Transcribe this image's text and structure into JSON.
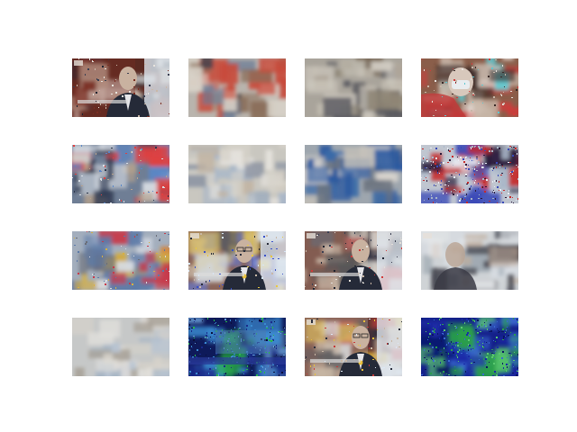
{
  "grid": {
    "rows": 4,
    "columns": 4
  },
  "tiles": [
    {
      "id": 1,
      "kind": "interview-man",
      "base": "#5a2a22",
      "colors": [
        "#7a2e22",
        "#c9b8a8",
        "#1f2430",
        "#e8e4de",
        "#3a3f52"
      ]
    },
    {
      "id": 2,
      "kind": "office-crowd",
      "base": "#b9b4ad",
      "colors": [
        "#3b3f4a",
        "#d8d2c8",
        "#8a6e5a",
        "#c84a3a",
        "#6e7d96"
      ]
    },
    {
      "id": 3,
      "kind": "blurred-room",
      "base": "#a9a49b",
      "colors": [
        "#7a6a5a",
        "#c7c1b6",
        "#5a5a60",
        "#8f8676",
        "#d2cdc3"
      ]
    },
    {
      "id": 4,
      "kind": "masked-person",
      "base": "#8a5e4a",
      "colors": [
        "#c8b6a8",
        "#3a2a28",
        "#d23a3a",
        "#e8e2dc",
        "#5fc8d0"
      ]
    },
    {
      "id": 5,
      "kind": "office-workers",
      "base": "#6f7e95",
      "colors": [
        "#d8dde4",
        "#2e3950",
        "#5a87c8",
        "#b7a28c",
        "#e04040"
      ]
    },
    {
      "id": 6,
      "kind": "blurred-light",
      "base": "#c9c7c0",
      "colors": [
        "#a7b6c8",
        "#d6d2c9",
        "#8d95a3",
        "#c1b3a1",
        "#e6e4df"
      ]
    },
    {
      "id": 7,
      "kind": "blurred-blue",
      "base": "#9ea6ae",
      "colors": [
        "#3a6aa8",
        "#c4c0b8",
        "#6c7480",
        "#2a58a0",
        "#d8d4ce"
      ]
    },
    {
      "id": 8,
      "kind": "noisy-scene",
      "base": "#c0c6d0",
      "colors": [
        "#2a1a3a",
        "#c62a2a",
        "#e8eef6",
        "#3a4ab8",
        "#a8b6c8"
      ]
    },
    {
      "id": 9,
      "kind": "office-hall",
      "base": "#a3aebd",
      "colors": [
        "#5c7aa8",
        "#d8dce2",
        "#6a6e78",
        "#d8b040",
        "#c83a4a"
      ]
    },
    {
      "id": 10,
      "kind": "interview-man-glasses",
      "base": "#6a3a32",
      "colors": [
        "#c9b8a6",
        "#272c3a",
        "#d8e6f4",
        "#e8c840",
        "#3a52c8"
      ]
    },
    {
      "id": 11,
      "kind": "interview-man",
      "base": "#5e2c24",
      "colors": [
        "#c8b6a6",
        "#1f2430",
        "#e4e0da",
        "#3a3f52",
        "#d03a3a"
      ]
    },
    {
      "id": 12,
      "kind": "blurred-portrait",
      "base": "#cfd3d6",
      "colors": [
        "#d8dde2",
        "#3a3a44",
        "#c2ad9a",
        "#e6e8ea",
        "#9aa4ae"
      ]
    },
    {
      "id": 13,
      "kind": "blurred-pale",
      "base": "#c6c8c8",
      "colors": [
        "#b8c4d2",
        "#d6d2ca",
        "#a6a096",
        "#e2e0dc",
        "#9fb0c2"
      ]
    },
    {
      "id": 14,
      "kind": "noisy-dark-blue",
      "base": "#0e1a5a",
      "colors": [
        "#1a2a8a",
        "#3a8ad0",
        "#2ab84a",
        "#0a0f3a",
        "#6aa0d8"
      ]
    },
    {
      "id": 15,
      "kind": "interview-man-glasses",
      "base": "#6a3830",
      "colors": [
        "#c8b6a4",
        "#2a2f3d",
        "#dce8f4",
        "#e8c03a",
        "#c83a3a"
      ]
    },
    {
      "id": 16,
      "kind": "noisy-navy",
      "base": "#14208a",
      "colors": [
        "#0a1560",
        "#2aa04a",
        "#3a6ad0",
        "#1a2aa8",
        "#5ac870"
      ]
    }
  ]
}
